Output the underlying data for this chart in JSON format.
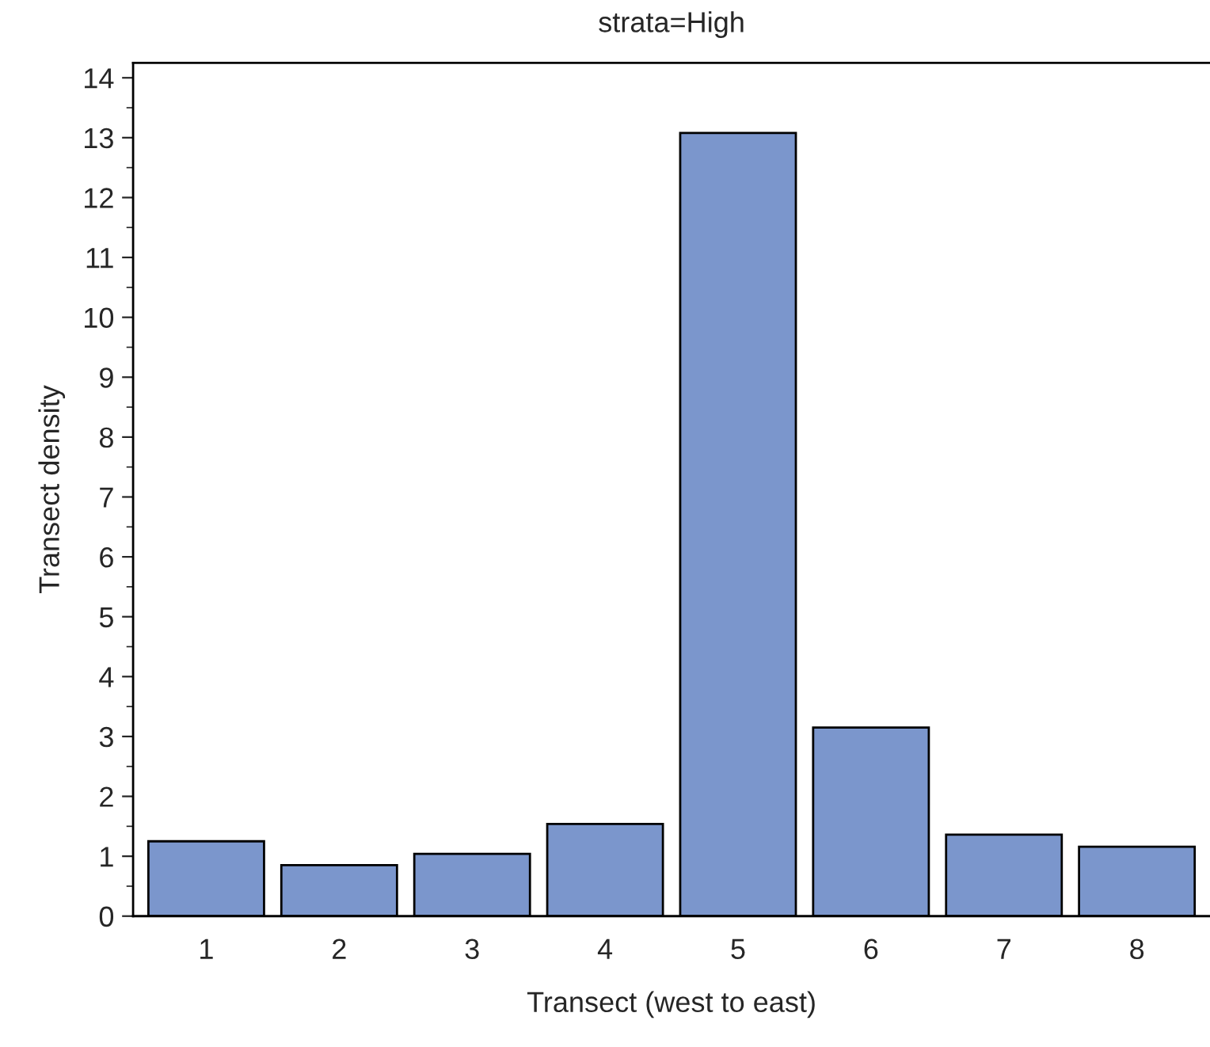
{
  "chart_data": {
    "type": "bar",
    "title": "strata=High",
    "xlabel": "Transect (west to east)",
    "ylabel": "Transect density",
    "categories": [
      "1",
      "2",
      "3",
      "4",
      "5",
      "6",
      "7",
      "8"
    ],
    "values": [
      1.25,
      0.85,
      1.04,
      1.54,
      13.08,
      3.15,
      1.36,
      1.16
    ],
    "color": "#7b96cc",
    "ylim": [
      0,
      14.25
    ],
    "yticks": [
      0,
      1,
      2,
      3,
      4,
      5,
      6,
      7,
      8,
      9,
      10,
      11,
      12,
      13,
      14
    ],
    "grid": false,
    "legend": false
  }
}
